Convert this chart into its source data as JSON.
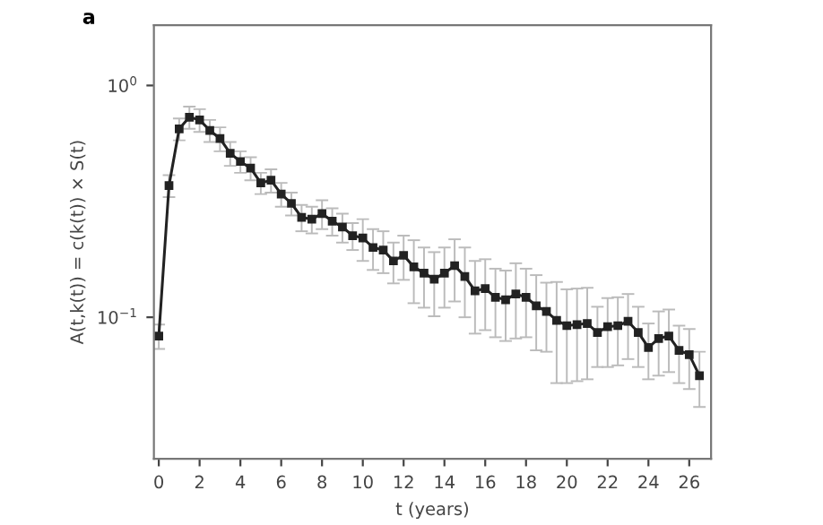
{
  "chart_data": {
    "type": "line",
    "xlabel": "t (years)",
    "ylabel": "A(t,k(t)) = c(k(t)) × S(t)",
    "annotations": [
      "a"
    ],
    "x": [
      0,
      0.5,
      1,
      1.5,
      2,
      2.5,
      3,
      3.5,
      4,
      4.5,
      5,
      5.5,
      6,
      6.5,
      7,
      7.5,
      8,
      8.5,
      9,
      9.5,
      10,
      10.5,
      11,
      11.5,
      12,
      12.5,
      13,
      13.5,
      14,
      14.5,
      15,
      15.5,
      16,
      16.5,
      17,
      17.5,
      18,
      18.5,
      19,
      19.5,
      20,
      20.5,
      21,
      21.5,
      22,
      22.5,
      23,
      23.5,
      24,
      24.5,
      25,
      25.5,
      26,
      26.5
    ],
    "series": [
      {
        "color": "#222222",
        "values": [
          0.083,
          0.37,
          0.65,
          0.73,
          0.71,
          0.64,
          0.59,
          0.51,
          0.47,
          0.44,
          0.38,
          0.39,
          0.34,
          0.31,
          0.27,
          0.265,
          0.28,
          0.26,
          0.245,
          0.225,
          0.22,
          0.2,
          0.195,
          0.175,
          0.185,
          0.165,
          0.155,
          0.146,
          0.155,
          0.167,
          0.15,
          0.13,
          0.133,
          0.122,
          0.119,
          0.126,
          0.122,
          0.112,
          0.106,
          0.097,
          0.092,
          0.093,
          0.094,
          0.086,
          0.091,
          0.092,
          0.096,
          0.086,
          0.074,
          0.081,
          0.083,
          0.072,
          0.069,
          0.056
        ],
        "errors": [
          0.01,
          0.04,
          0.07,
          0.08,
          0.08,
          0.07,
          0.07,
          0.06,
          0.05,
          0.05,
          0.04,
          0.045,
          0.04,
          0.035,
          0.035,
          0.035,
          0.04,
          0.035,
          0.035,
          0.03,
          0.045,
          0.04,
          0.04,
          0.035,
          0.04,
          0.05,
          0.045,
          0.045,
          0.045,
          0.05,
          0.05,
          0.045,
          0.045,
          0.04,
          0.04,
          0.045,
          0.04,
          0.04,
          0.035,
          0.045,
          0.04,
          0.04,
          0.04,
          0.025,
          0.03,
          0.03,
          0.03,
          0.025,
          0.02,
          0.025,
          0.025,
          0.02,
          0.02,
          0.015
        ]
      }
    ],
    "log": "y",
    "xlim": [
      -0.24,
      27.07
    ],
    "xticks": [
      0,
      2,
      4,
      6,
      8,
      10,
      12,
      14,
      16,
      18,
      20,
      22,
      24,
      26
    ],
    "ylim": [
      0.0245,
      1.82
    ],
    "yticks": [
      {
        "value": 1,
        "label": "10$^{0}$"
      },
      {
        "value": 0.1,
        "label": "10$^{−1}$"
      }
    ],
    "marker": "square",
    "line_style": "solid",
    "grid": false
  }
}
